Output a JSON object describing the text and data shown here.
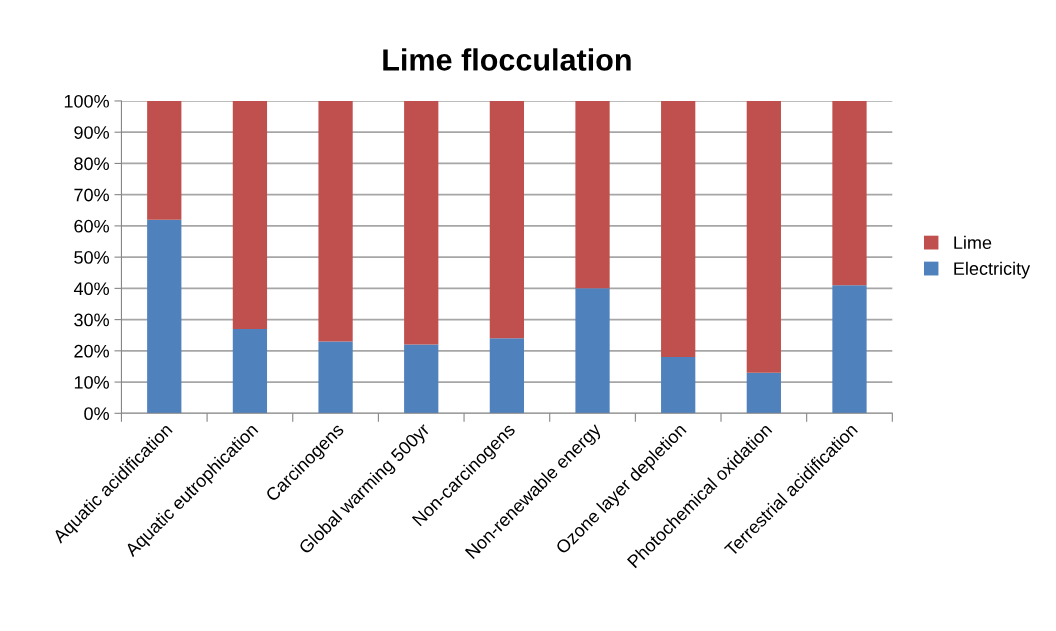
{
  "chart_data": {
    "type": "bar",
    "title": "Lime flocculation",
    "stacked": true,
    "categories": [
      "Aquatic acidification",
      "Aquatic eutrophication",
      "Carcinogens",
      "Global warming 500yr",
      "Non-carcinogens",
      "Non-renewable energy",
      "Ozone layer depletion",
      "Photochemical oxidation",
      "Terrestrial acidification"
    ],
    "series": [
      {
        "name": "Electricity",
        "color": "#4f81bd",
        "values": [
          62,
          27,
          23,
          22,
          24,
          40,
          18,
          13,
          41
        ]
      },
      {
        "name": "Lime",
        "color": "#c0504d",
        "values": [
          38,
          73,
          77,
          78,
          76,
          60,
          82,
          87,
          59
        ]
      }
    ],
    "ylim": [
      0,
      100
    ],
    "yticks": [
      {
        "value": 0,
        "label": "0%"
      },
      {
        "value": 10,
        "label": "10%"
      },
      {
        "value": 20,
        "label": "20%"
      },
      {
        "value": 30,
        "label": "30%"
      },
      {
        "value": 40,
        "label": "40%"
      },
      {
        "value": 50,
        "label": "50%"
      },
      {
        "value": 60,
        "label": "60%"
      },
      {
        "value": 70,
        "label": "70%"
      },
      {
        "value": 80,
        "label": "80%"
      },
      {
        "value": 90,
        "label": "90%"
      },
      {
        "value": 100,
        "label": "100%"
      }
    ],
    "grid": "y",
    "legend": "right"
  }
}
